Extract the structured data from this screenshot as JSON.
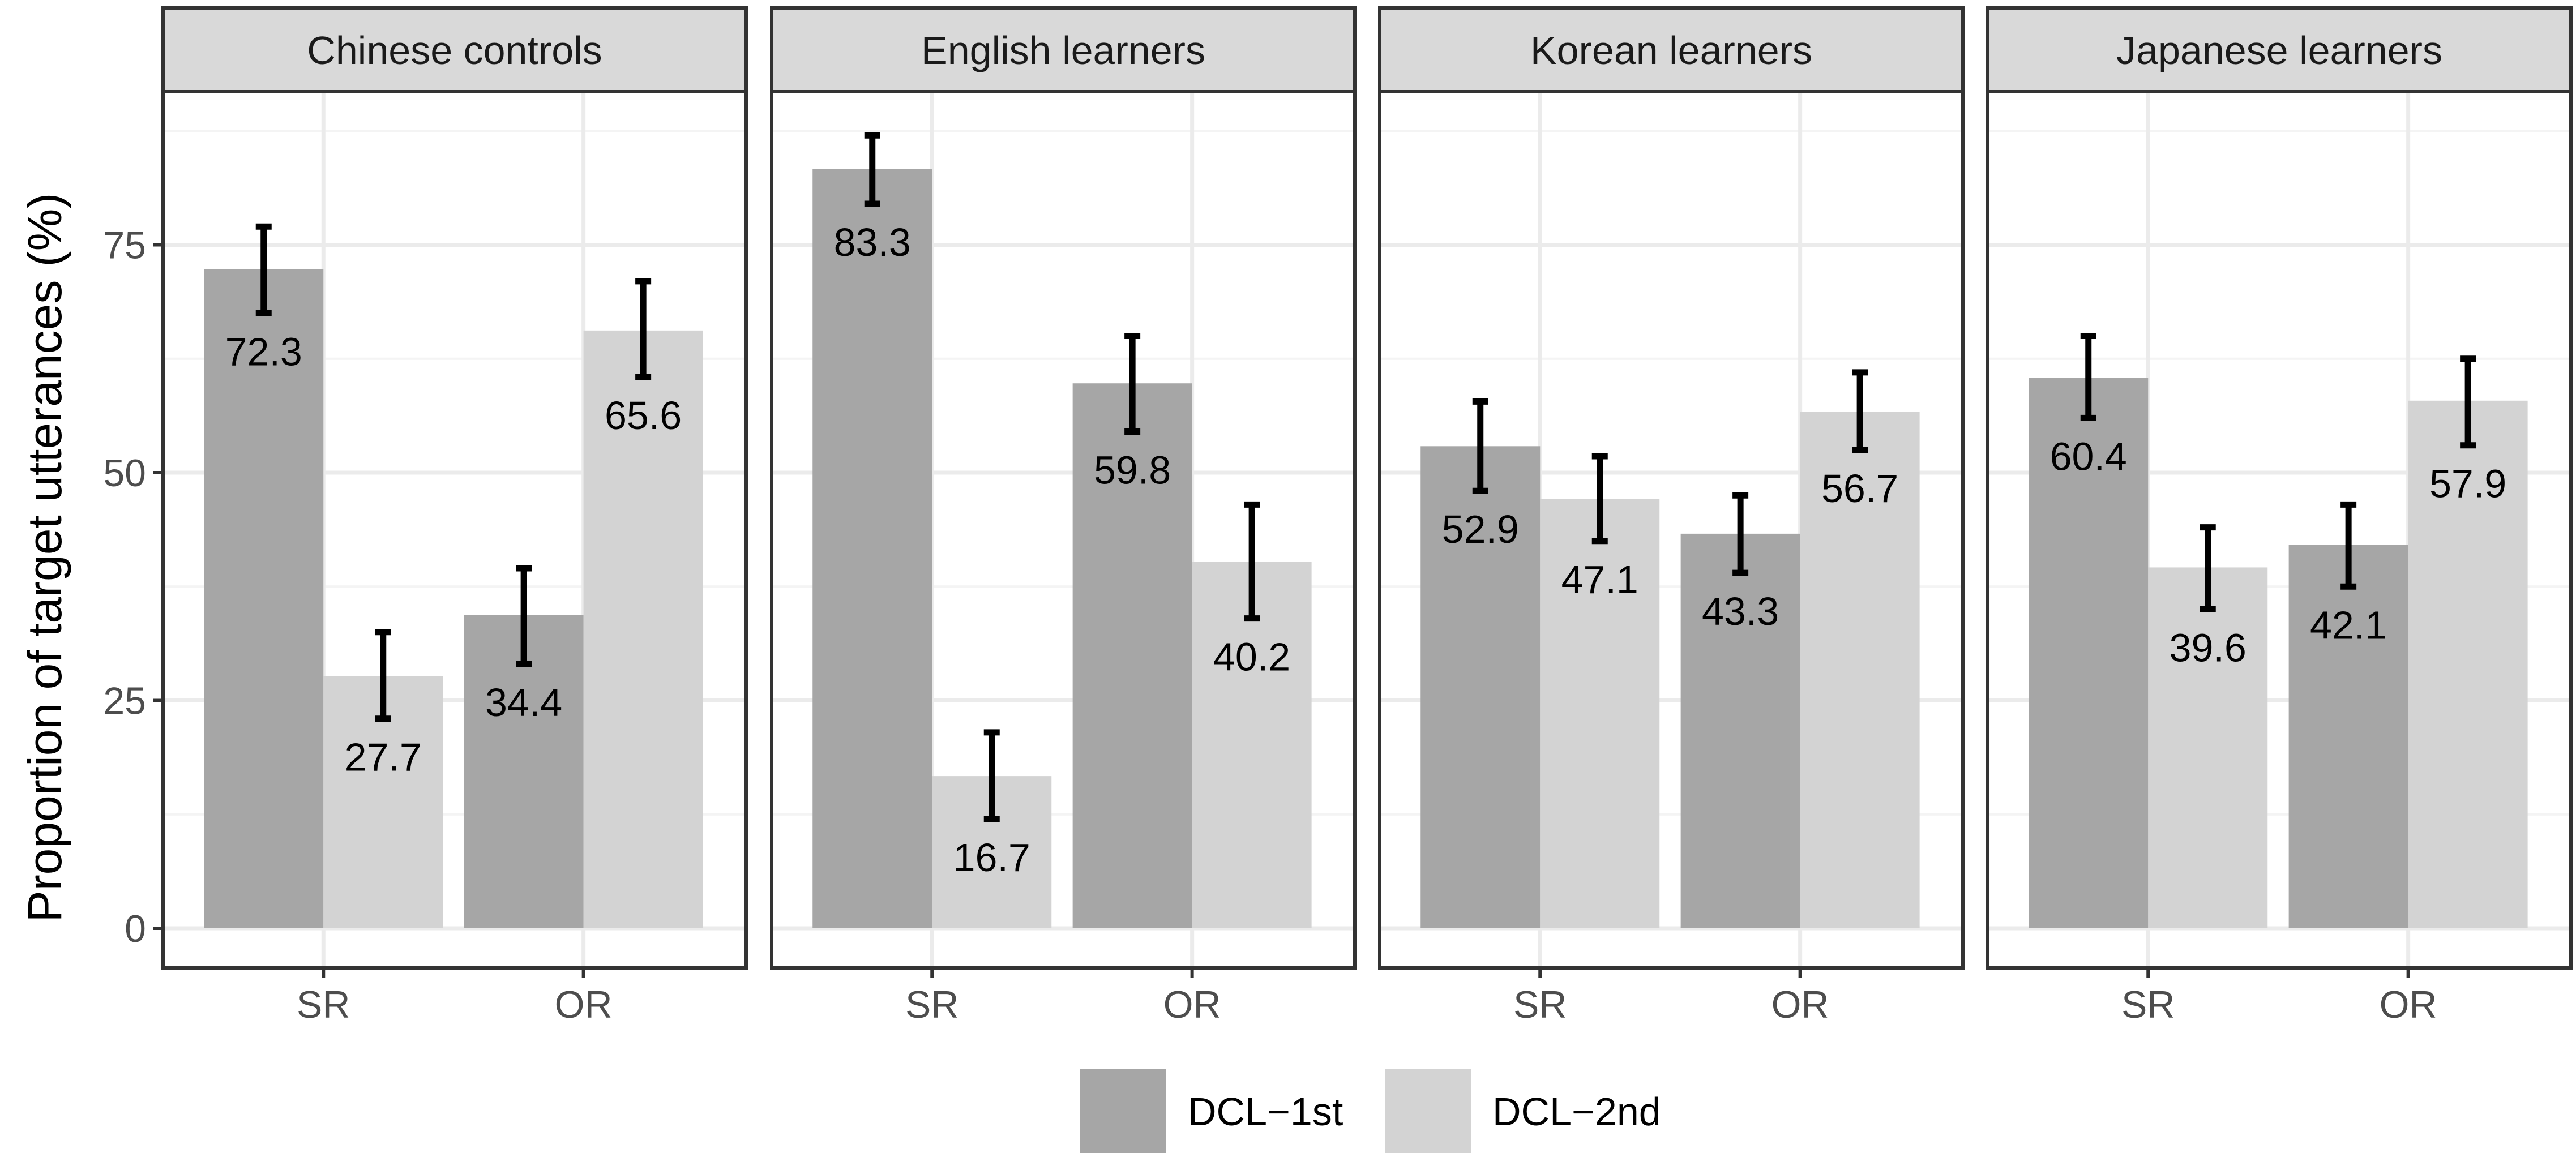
{
  "chart_data": {
    "type": "bar",
    "ylabel": "Proportion of target utterances (%)",
    "xlabel": "",
    "ylim": [
      0,
      90
    ],
    "yticks": [
      0,
      25,
      50,
      75
    ],
    "categories": [
      "SR",
      "OR"
    ],
    "legend": {
      "position": "bottom",
      "entries": [
        {
          "name": "DCL−1st",
          "color": "#a6a6a6"
        },
        {
          "name": "DCL−2nd",
          "color": "#d3d3d3"
        }
      ]
    },
    "grid": true,
    "panels": [
      {
        "title": "Chinese controls",
        "series": [
          {
            "name": "DCL−1st",
            "values": [
              72.3,
              34.4
            ],
            "labels": [
              "72.3",
              "34.4"
            ],
            "error": [
              [
                67.5,
                77.0
              ],
              [
                29.0,
                39.5
              ]
            ]
          },
          {
            "name": "DCL−2nd",
            "values": [
              27.7,
              65.6
            ],
            "labels": [
              "27.7",
              "65.6"
            ],
            "error": [
              [
                23.0,
                32.5
              ],
              [
                60.5,
                71.0
              ]
            ]
          }
        ]
      },
      {
        "title": "English learners",
        "series": [
          {
            "name": "DCL−1st",
            "values": [
              83.3,
              59.8
            ],
            "labels": [
              "83.3",
              "59.8"
            ],
            "error": [
              [
                79.5,
                87.0
              ],
              [
                54.5,
                65.0
              ]
            ]
          },
          {
            "name": "DCL−2nd",
            "values": [
              16.7,
              40.2
            ],
            "labels": [
              "16.7",
              "40.2"
            ],
            "error": [
              [
                12.0,
                21.5
              ],
              [
                34.0,
                46.5
              ]
            ]
          }
        ]
      },
      {
        "title": "Korean learners",
        "series": [
          {
            "name": "DCL−1st",
            "values": [
              52.9,
              43.3
            ],
            "labels": [
              "52.9",
              "43.3"
            ],
            "error": [
              [
                48.0,
                57.8
              ],
              [
                39.0,
                47.5
              ]
            ]
          },
          {
            "name": "DCL−2nd",
            "values": [
              47.1,
              56.7
            ],
            "labels": [
              "47.1",
              "56.7"
            ],
            "error": [
              [
                42.5,
                51.8
              ],
              [
                52.5,
                61.0
              ]
            ]
          }
        ]
      },
      {
        "title": "Japanese learners",
        "series": [
          {
            "name": "DCL−1st",
            "values": [
              60.4,
              42.1
            ],
            "labels": [
              "60.4",
              "42.1"
            ],
            "error": [
              [
                56.0,
                65.0
              ],
              [
                37.5,
                46.5
              ]
            ]
          },
          {
            "name": "DCL−2nd",
            "values": [
              39.6,
              57.9
            ],
            "labels": [
              "39.6",
              "57.9"
            ],
            "error": [
              [
                35.0,
                44.0
              ],
              [
                53.0,
                62.5
              ]
            ]
          }
        ]
      }
    ]
  }
}
